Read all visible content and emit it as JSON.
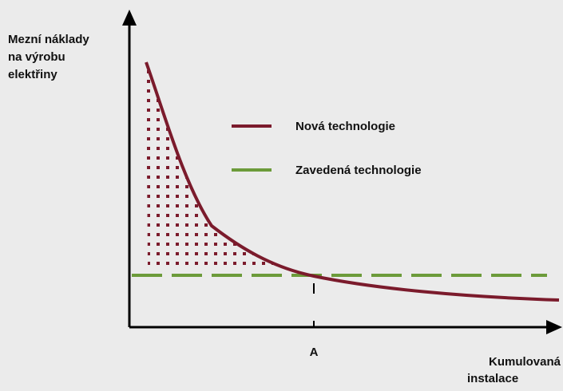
{
  "y_axis": {
    "label_lines": [
      "Mezní náklady",
      "na výrobu",
      "elektřiny"
    ]
  },
  "x_axis": {
    "label_lines": [
      "Kumulovaná",
      "instalace"
    ],
    "marker": "A"
  },
  "legend": [
    {
      "label": "Nová technologie",
      "color": "#7b1b2c"
    },
    {
      "label": "Zavedená technologie",
      "color": "#6c9b3a"
    }
  ]
}
